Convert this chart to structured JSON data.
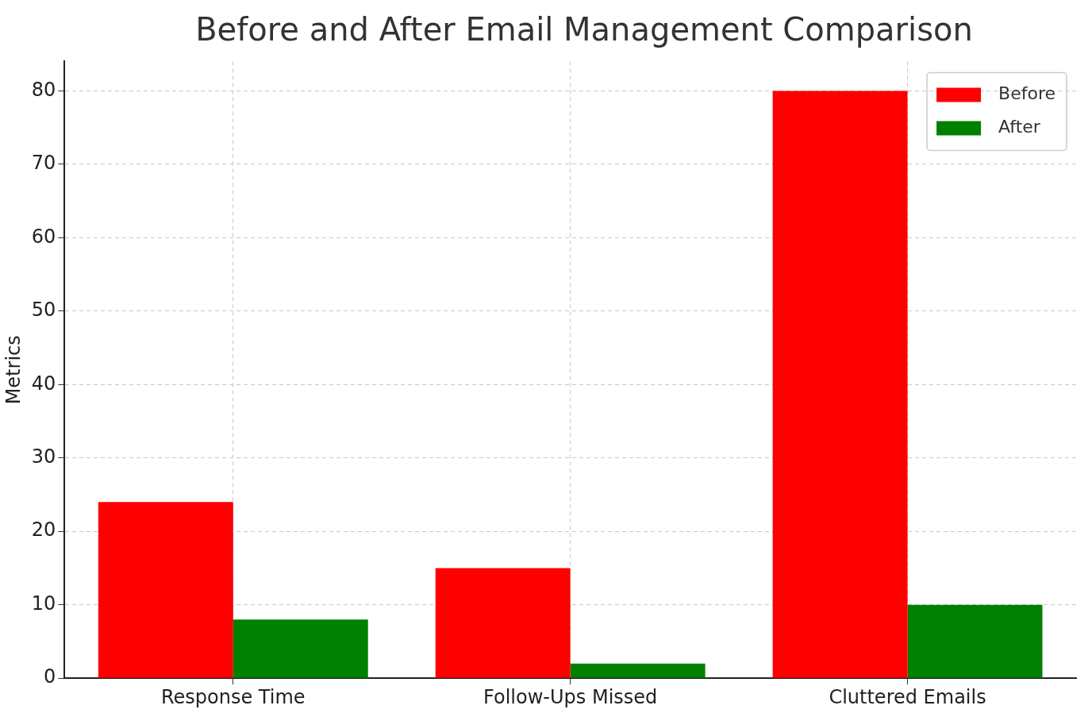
{
  "chart_data": {
    "type": "bar",
    "title": "Before and After Email Management Comparison",
    "ylabel": "Metrics",
    "categories": [
      "Response Time",
      "Follow-Ups Missed",
      "Cluttered Emails"
    ],
    "series": [
      {
        "name": "Before",
        "color": "#ff0000",
        "values": [
          24,
          15,
          80
        ]
      },
      {
        "name": "After",
        "color": "#008000",
        "values": [
          8,
          2,
          10
        ]
      }
    ],
    "ylim": [
      0,
      84
    ],
    "yticks": [
      0,
      10,
      20,
      30,
      40,
      50,
      60,
      70,
      80
    ],
    "grid": true,
    "legend": "top right"
  }
}
